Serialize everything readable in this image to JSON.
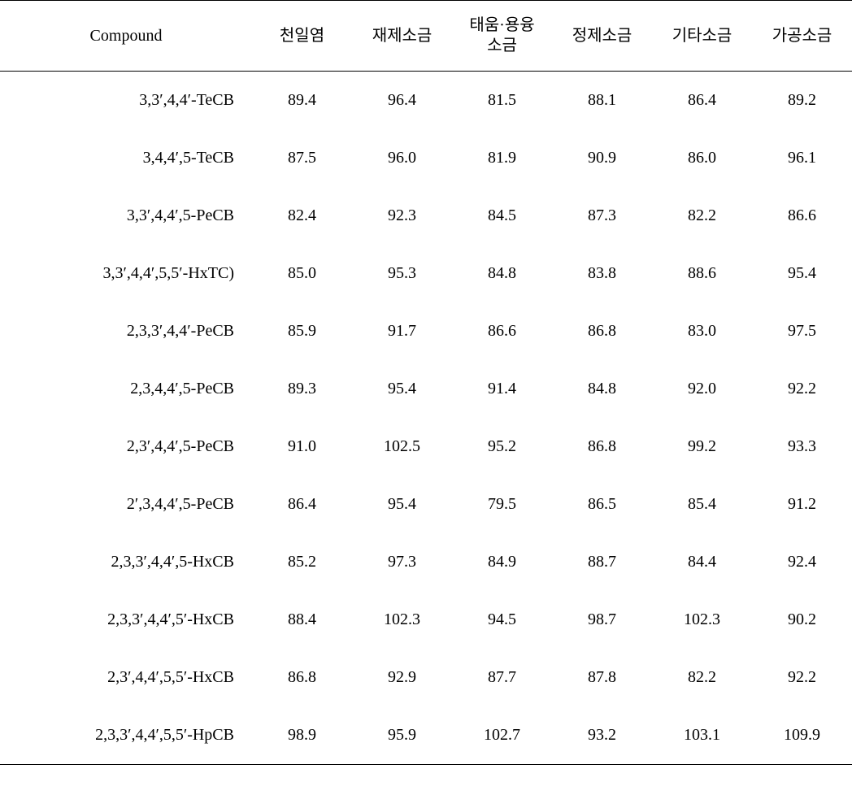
{
  "table": {
    "columns": [
      "Compound",
      "천일염",
      "재제소금",
      "태움·용융\n소금",
      "정제소금",
      "기타소금",
      "가공소금"
    ],
    "col_widths": [
      "310px",
      "123px",
      "123px",
      "123px",
      "123px",
      "123px",
      "123px"
    ],
    "header_fontsize": 20,
    "body_fontsize": 20,
    "text_color": "#000000",
    "border_color": "#000000",
    "background_color": "#ffffff",
    "rows": [
      [
        "3,3′,4,4′-TeCB",
        "89.4",
        "96.4",
        "81.5",
        "88.1",
        "86.4",
        "89.2"
      ],
      [
        "3,4,4′,5-TeCB",
        "87.5",
        "96.0",
        "81.9",
        "90.9",
        "86.0",
        "96.1"
      ],
      [
        "3,3′,4,4′,5-PeCB",
        "82.4",
        "92.3",
        "84.5",
        "87.3",
        "82.2",
        "86.6"
      ],
      [
        "3,3′,4,4′,5,5′-HxTC)",
        "85.0",
        "95.3",
        "84.8",
        "83.8",
        "88.6",
        "95.4"
      ],
      [
        "2,3,3′,4,4′-PeCB",
        "85.9",
        "91.7",
        "86.6",
        "86.8",
        "83.0",
        "97.5"
      ],
      [
        "2,3,4,4′,5-PeCB",
        "89.3",
        "95.4",
        "91.4",
        "84.8",
        "92.0",
        "92.2"
      ],
      [
        "2,3′,4,4′,5-PeCB",
        "91.0",
        "102.5",
        "95.2",
        "86.8",
        "99.2",
        "93.3"
      ],
      [
        "2′,3,4,4′,5-PeCB",
        "86.4",
        "95.4",
        "79.5",
        "86.5",
        "85.4",
        "91.2"
      ],
      [
        "2,3,3′,4,4′,5-HxCB",
        "85.2",
        "97.3",
        "84.9",
        "88.7",
        "84.4",
        "92.4"
      ],
      [
        "2,3,3′,4,4′,5′-HxCB",
        "88.4",
        "102.3",
        "94.5",
        "98.7",
        "102.3",
        "90.2"
      ],
      [
        "2,3′,4,4′,5,5′-HxCB",
        "86.8",
        "92.9",
        "87.7",
        "87.8",
        "82.2",
        "92.2"
      ],
      [
        "2,3,3′,4,4′,5,5′-HpCB",
        "98.9",
        "95.9",
        "102.7",
        "93.2",
        "103.1",
        "109.9"
      ]
    ]
  }
}
